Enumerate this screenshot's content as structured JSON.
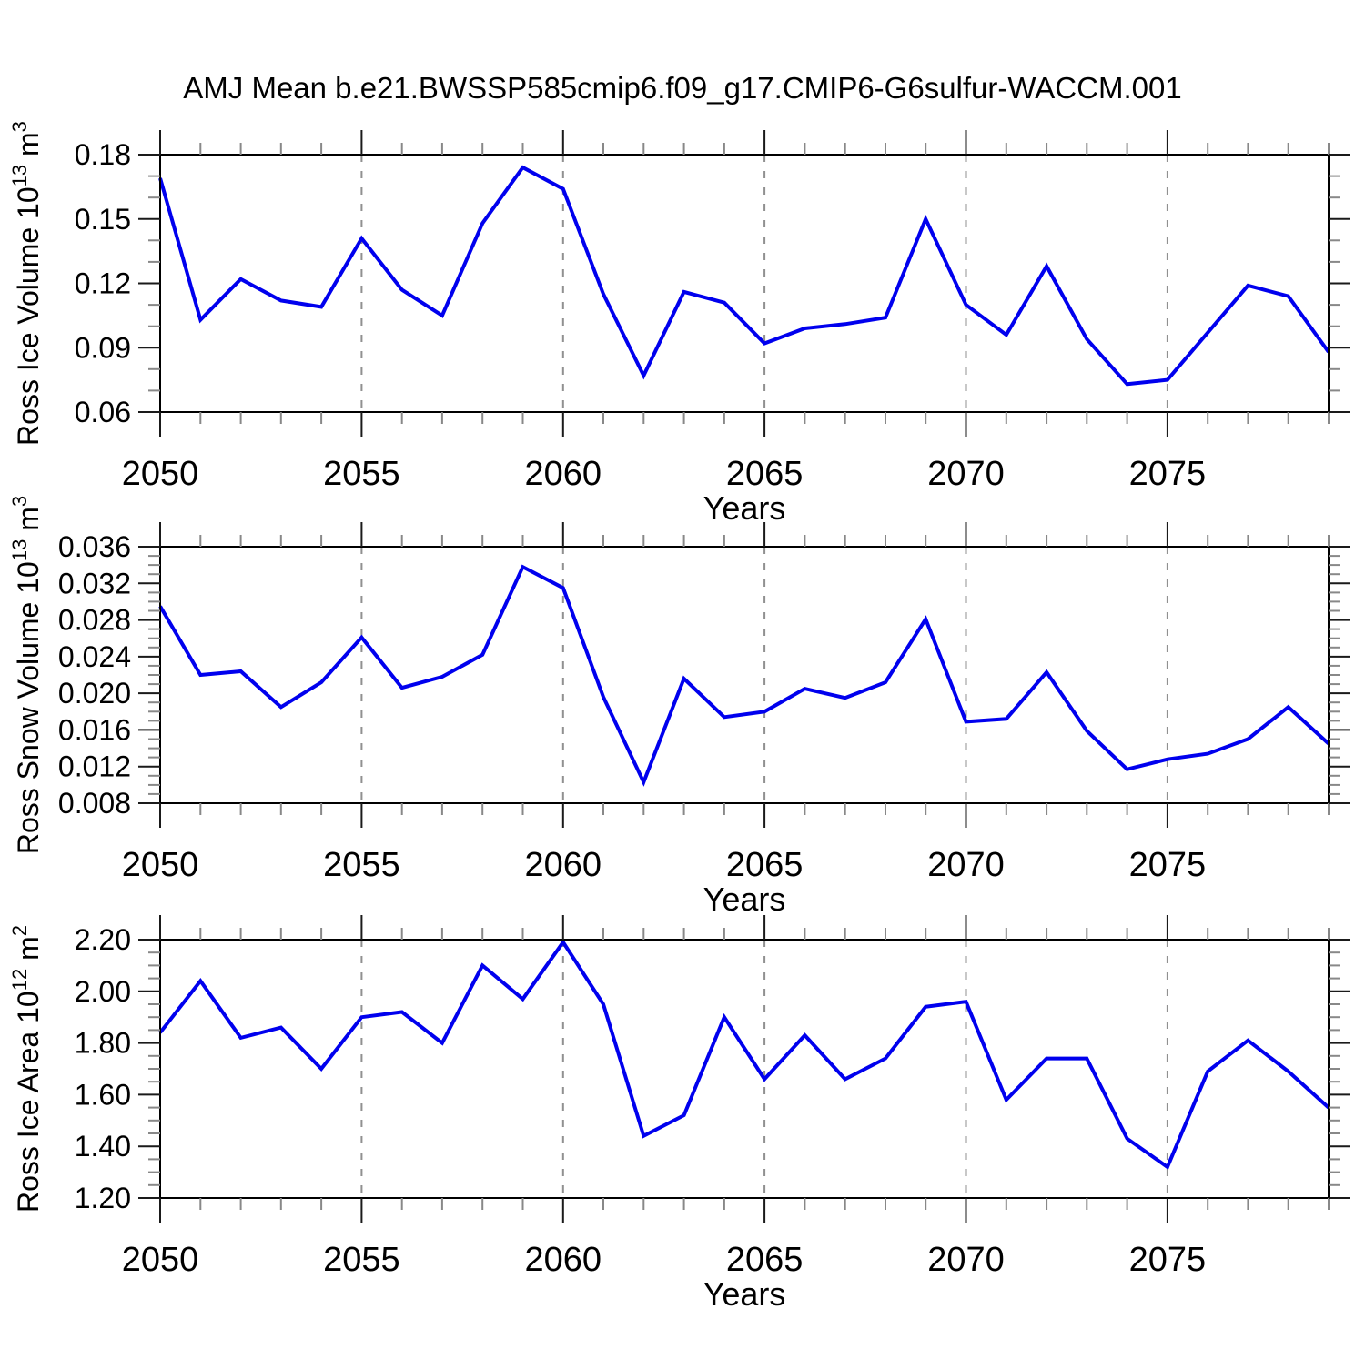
{
  "title": "AMJ Mean b.e21.BWSSP585cmip6.f09_g17.CMIP6-G6sulfur-WACCM.001",
  "colors": {
    "line": "#0000EE",
    "grid": "#909090",
    "axis": "#000000"
  },
  "chart_data": [
    {
      "type": "line",
      "name": "ross-ice-volume",
      "ylabel": "Ross Ice Volume 10^13 m^3",
      "ylabel_parts": [
        {
          "text": "Ross Ice Volume 10",
          "sup": false
        },
        {
          "text": "13",
          "sup": true
        },
        {
          "text": " m",
          "sup": false
        },
        {
          "text": "3",
          "sup": true
        }
      ],
      "xlabel": "Years",
      "x": [
        2050,
        2051,
        2052,
        2053,
        2054,
        2055,
        2056,
        2057,
        2058,
        2059,
        2060,
        2061,
        2062,
        2063,
        2064,
        2065,
        2066,
        2067,
        2068,
        2069,
        2070,
        2071,
        2072,
        2073,
        2074,
        2075,
        2076,
        2077,
        2078,
        2079
      ],
      "values": [
        0.169,
        0.103,
        0.122,
        0.112,
        0.109,
        0.141,
        0.117,
        0.105,
        0.148,
        0.174,
        0.164,
        0.115,
        0.077,
        0.116,
        0.111,
        0.092,
        0.099,
        0.101,
        0.104,
        0.15,
        0.11,
        0.096,
        0.128,
        0.094,
        0.073,
        0.075,
        0.097,
        0.119,
        0.114,
        0.088
      ],
      "xlim": [
        2050,
        2079
      ],
      "ylim": [
        0.06,
        0.18
      ],
      "y_major_ticks": [
        "0.06",
        "0.09",
        "0.12",
        "0.15",
        "0.18"
      ],
      "y_minor_step": 0.01,
      "x_major_ticks": [
        2050,
        2055,
        2060,
        2065,
        2070,
        2075
      ],
      "x_minor_step": 1,
      "grid_x": [
        2055,
        2060,
        2065,
        2070,
        2075
      ],
      "grid": true,
      "legend": null
    },
    {
      "type": "line",
      "name": "ross-snow-volume",
      "ylabel": "Ross Snow Volume 10^13 m^3",
      "ylabel_parts": [
        {
          "text": "Ross Snow Volume 10",
          "sup": false
        },
        {
          "text": "13",
          "sup": true
        },
        {
          "text": " m",
          "sup": false
        },
        {
          "text": "3",
          "sup": true
        }
      ],
      "xlabel": "Years",
      "x": [
        2050,
        2051,
        2052,
        2053,
        2054,
        2055,
        2056,
        2057,
        2058,
        2059,
        2060,
        2061,
        2062,
        2063,
        2064,
        2065,
        2066,
        2067,
        2068,
        2069,
        2070,
        2071,
        2072,
        2073,
        2074,
        2075,
        2076,
        2077,
        2078,
        2079
      ],
      "values": [
        0.0295,
        0.022,
        0.0224,
        0.0185,
        0.0212,
        0.0261,
        0.0206,
        0.0218,
        0.0242,
        0.0338,
        0.0315,
        0.0196,
        0.0103,
        0.0216,
        0.0174,
        0.018,
        0.0205,
        0.0195,
        0.0212,
        0.0281,
        0.0169,
        0.0172,
        0.0223,
        0.0159,
        0.0117,
        0.0128,
        0.0134,
        0.015,
        0.0185,
        0.0145
      ],
      "xlim": [
        2050,
        2079
      ],
      "ylim": [
        0.008,
        0.036
      ],
      "y_major_ticks": [
        "0.008",
        "0.012",
        "0.016",
        "0.020",
        "0.024",
        "0.028",
        "0.032",
        "0.036"
      ],
      "y_minor_step": 0.001,
      "x_major_ticks": [
        2050,
        2055,
        2060,
        2065,
        2070,
        2075
      ],
      "x_minor_step": 1,
      "grid_x": [
        2055,
        2060,
        2065,
        2070,
        2075
      ],
      "grid": true,
      "legend": null
    },
    {
      "type": "line",
      "name": "ross-ice-area",
      "ylabel": "Ross Ice Area 10^12 m^2",
      "ylabel_parts": [
        {
          "text": "Ross Ice Area 10",
          "sup": false
        },
        {
          "text": "12",
          "sup": true
        },
        {
          "text": " m",
          "sup": false
        },
        {
          "text": "2",
          "sup": true
        }
      ],
      "xlabel": "Years",
      "x": [
        2050,
        2051,
        2052,
        2053,
        2054,
        2055,
        2056,
        2057,
        2058,
        2059,
        2060,
        2061,
        2062,
        2063,
        2064,
        2065,
        2066,
        2067,
        2068,
        2069,
        2070,
        2071,
        2072,
        2073,
        2074,
        2075,
        2076,
        2077,
        2078,
        2079
      ],
      "values": [
        1.84,
        2.04,
        1.82,
        1.86,
        1.7,
        1.9,
        1.92,
        1.8,
        2.1,
        1.97,
        2.19,
        1.95,
        1.44,
        1.52,
        1.9,
        1.66,
        1.83,
        1.66,
        1.74,
        1.94,
        1.96,
        1.58,
        1.74,
        1.74,
        1.43,
        1.32,
        1.69,
        1.81,
        1.69,
        1.55
      ],
      "xlim": [
        2050,
        2079
      ],
      "ylim": [
        1.2,
        2.2
      ],
      "y_major_ticks": [
        "1.20",
        "1.40",
        "1.60",
        "1.80",
        "2.00",
        "2.20"
      ],
      "y_minor_step": 0.05,
      "x_major_ticks": [
        2050,
        2055,
        2060,
        2065,
        2070,
        2075
      ],
      "x_minor_step": 1,
      "grid_x": [
        2055,
        2060,
        2065,
        2070,
        2075
      ],
      "grid": true,
      "legend": null
    }
  ]
}
